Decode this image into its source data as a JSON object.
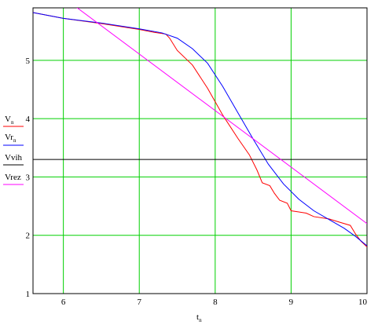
{
  "chart_data": {
    "type": "line",
    "title": "",
    "xlabel": "t",
    "xlabel_sub": "n",
    "ylabel": "",
    "xlim": [
      5.6,
      10.0
    ],
    "ylim": [
      1,
      5.9
    ],
    "grid": true,
    "grid_color": "#00d000",
    "x_ticks": [
      6,
      7,
      8,
      9,
      10
    ],
    "y_ticks": [
      1,
      2,
      3,
      4,
      5
    ],
    "legend_placement": "left",
    "series": [
      {
        "name": "V",
        "name_sub": "n",
        "color": "#ff0000",
        "points": [
          [
            5.6,
            5.82
          ],
          [
            6.0,
            5.72
          ],
          [
            6.5,
            5.63
          ],
          [
            7.0,
            5.53
          ],
          [
            7.2,
            5.48
          ],
          [
            7.35,
            5.45
          ],
          [
            7.4,
            5.38
          ],
          [
            7.5,
            5.17
          ],
          [
            7.7,
            4.92
          ],
          [
            7.9,
            4.52
          ],
          [
            8.1,
            4.06
          ],
          [
            8.3,
            3.66
          ],
          [
            8.45,
            3.38
          ],
          [
            8.55,
            3.12
          ],
          [
            8.62,
            2.9
          ],
          [
            8.72,
            2.85
          ],
          [
            8.78,
            2.72
          ],
          [
            8.85,
            2.6
          ],
          [
            8.95,
            2.55
          ],
          [
            9.0,
            2.42
          ],
          [
            9.2,
            2.38
          ],
          [
            9.3,
            2.32
          ],
          [
            9.5,
            2.28
          ],
          [
            9.65,
            2.22
          ],
          [
            9.78,
            2.17
          ],
          [
            9.85,
            2.02
          ],
          [
            9.92,
            1.9
          ],
          [
            10.0,
            1.8
          ]
        ]
      },
      {
        "name": "Vr",
        "name_sub": "n",
        "color": "#0000ff",
        "points": [
          [
            5.6,
            5.82
          ],
          [
            6.0,
            5.72
          ],
          [
            6.5,
            5.64
          ],
          [
            7.0,
            5.54
          ],
          [
            7.3,
            5.47
          ],
          [
            7.5,
            5.38
          ],
          [
            7.7,
            5.2
          ],
          [
            7.9,
            4.95
          ],
          [
            8.1,
            4.55
          ],
          [
            8.3,
            4.1
          ],
          [
            8.5,
            3.65
          ],
          [
            8.7,
            3.22
          ],
          [
            8.9,
            2.88
          ],
          [
            9.1,
            2.62
          ],
          [
            9.3,
            2.42
          ],
          [
            9.5,
            2.27
          ],
          [
            9.7,
            2.12
          ],
          [
            9.85,
            1.98
          ],
          [
            10.0,
            1.82
          ]
        ]
      },
      {
        "name": "Vvih",
        "name_sub": "",
        "color": "#000000",
        "points": [
          [
            5.6,
            3.3
          ],
          [
            10.0,
            3.3
          ]
        ]
      },
      {
        "name": "Vrez",
        "name_sub": "",
        "color": "#ff00ff",
        "points": [
          [
            6.1,
            5.98
          ],
          [
            10.0,
            2.2
          ]
        ]
      }
    ]
  }
}
